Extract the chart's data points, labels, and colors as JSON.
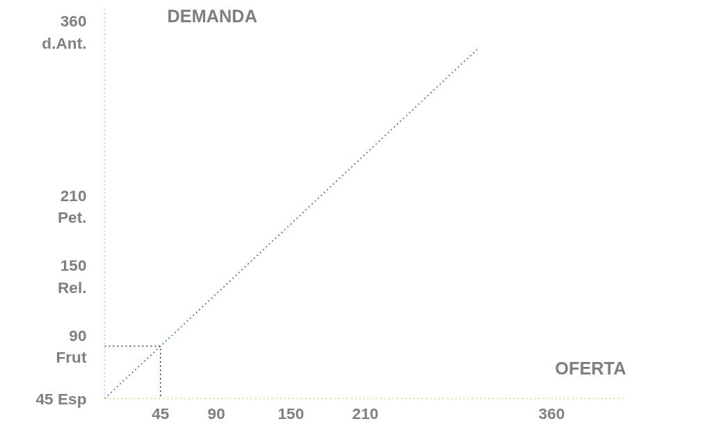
{
  "chart_data": {
    "type": "line",
    "xlabel": "OFERTA",
    "ylabel": "DEMANDA",
    "series": [
      {
        "x": [
          0,
          45,
          300
        ],
        "values": [
          45,
          90,
          345
        ],
        "color": "#3355dd",
        "line_style": "dotted"
      },
      {
        "x": [
          0,
          45,
          45
        ],
        "values": [
          90,
          90,
          45
        ],
        "color": "#223366",
        "line_style": "dotted"
      }
    ],
    "xlim": [
      0,
      420
    ],
    "ylim": [
      45,
      380
    ],
    "xticks": [
      45,
      90,
      150,
      210,
      360
    ],
    "yticks": [
      {
        "value": 45,
        "label": "45 Esp"
      },
      {
        "value": 90,
        "label": "90\nFrut"
      },
      {
        "value": 150,
        "label": "150\nRel."
      },
      {
        "value": 210,
        "label": "210\nPet."
      },
      {
        "value": 360,
        "label": "360\nd.Ant."
      }
    ],
    "grid": false,
    "marker": "none"
  }
}
